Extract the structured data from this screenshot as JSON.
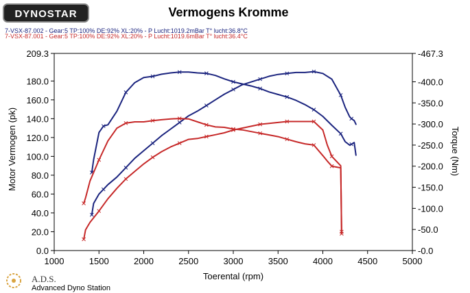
{
  "header": {
    "logo_text": "DYNOSTAR",
    "run_lines": [
      {
        "text": "7-VSX-87.002 - Gear:5 TP:100% DE:92% XL:20%   - P Lucht:1019.2mBar T° lucht:36.8°C",
        "color": "#1a237e"
      },
      {
        "text": "7-VSX-87.001 - Gear:5 TP:100% DE:92% XL:20%   - P Lucht:1019.6mBar T° lucht:36.4°C",
        "color": "#c62828"
      }
    ]
  },
  "footer": {
    "brand_title": "A.D.S.",
    "brand_subtitle": "Advanced Dyno Station"
  },
  "chart_data": {
    "type": "line",
    "title": "Vermogens Kromme",
    "xlabel": "Toerental (rpm)",
    "ylabel_left": "Motor Vermogen (pk)",
    "ylabel_right": "Torque (Nm)",
    "xlim": [
      1000,
      5000
    ],
    "ylim_left": [
      0,
      209.3
    ],
    "ylim_right": [
      0,
      467.3
    ],
    "x_ticks": [
      "1000",
      "1500",
      "2000",
      "2500",
      "3000",
      "3500",
      "4000",
      "4500",
      "5000"
    ],
    "y_left_ticks": [
      "0.0",
      "20.0",
      "40.0",
      "60.0",
      "80.0",
      "100.0",
      "120.0",
      "140.0",
      "160.0",
      "180.0",
      "209.3"
    ],
    "y_right_ticks": [
      "-0.0",
      "-50.0",
      "-100.0",
      "-150.0",
      "-200.0",
      "-250.0",
      "-300.0",
      "-350.0",
      "-400.0",
      "-467.3"
    ],
    "grid": false,
    "colors": {
      "run_002": "#1a237e",
      "run_001": "#c62828"
    },
    "series": [
      {
        "name": "7-VSX-87.002",
        "quantity": "power",
        "axis": "left",
        "x": [
          1420,
          1440,
          1500,
          1550,
          1600,
          1700,
          1800,
          1900,
          2000,
          2100,
          2200,
          2300,
          2400,
          2500,
          2600,
          2700,
          2800,
          2900,
          3000,
          3100,
          3200,
          3300,
          3400,
          3500,
          3600,
          3700,
          3800,
          3900,
          4000,
          4100,
          4200,
          4250,
          4300,
          4320,
          4350,
          4370
        ],
        "y": [
          38,
          50,
          60,
          65,
          70,
          78,
          88,
          98,
          106,
          114,
          122,
          129,
          136,
          143,
          148,
          154,
          160,
          166,
          171,
          176,
          179,
          182,
          185,
          187,
          188,
          189,
          189,
          190,
          188,
          182,
          165,
          152,
          142,
          140,
          138,
          134
        ]
      },
      {
        "name": "7-VSX-87.002",
        "quantity": "torque",
        "axis": "right",
        "x": [
          1420,
          1440,
          1500,
          1550,
          1600,
          1700,
          1800,
          1900,
          2000,
          2100,
          2200,
          2300,
          2400,
          2500,
          2600,
          2700,
          2800,
          2900,
          3000,
          3100,
          3200,
          3300,
          3400,
          3500,
          3600,
          3700,
          3800,
          3900,
          4000,
          4100,
          4200,
          4250,
          4300,
          4320,
          4350,
          4370
        ],
        "y": [
          185,
          215,
          280,
          295,
          298,
          330,
          375,
          398,
          410,
          413,
          418,
          421,
          423,
          423,
          421,
          420,
          415,
          407,
          400,
          395,
          390,
          384,
          376,
          370,
          364,
          356,
          346,
          334,
          318,
          297,
          277,
          258,
          250,
          252,
          256,
          226
        ]
      },
      {
        "name": "7-VSX-87.001",
        "quantity": "power",
        "axis": "left",
        "x": [
          1330,
          1350,
          1400,
          1500,
          1600,
          1700,
          1800,
          1900,
          2000,
          2100,
          2200,
          2300,
          2400,
          2500,
          2600,
          2700,
          2800,
          2900,
          3000,
          3100,
          3200,
          3300,
          3400,
          3500,
          3600,
          3700,
          3800,
          3900,
          4000,
          4050,
          4100,
          4150,
          4200,
          4210
        ],
        "y": [
          12,
          22,
          30,
          42,
          55,
          66,
          76,
          84,
          92,
          99,
          105,
          110,
          114,
          118,
          119,
          121,
          123,
          125,
          128,
          130,
          132,
          134,
          135,
          136,
          137,
          137,
          137,
          137,
          128,
          112,
          100,
          95,
          90,
          20
        ]
      },
      {
        "name": "7-VSX-87.001",
        "quantity": "torque",
        "axis": "right",
        "x": [
          1330,
          1350,
          1400,
          1500,
          1600,
          1700,
          1800,
          1900,
          2000,
          2100,
          2200,
          2300,
          2400,
          2500,
          2600,
          2700,
          2800,
          2900,
          3000,
          3100,
          3200,
          3300,
          3400,
          3500,
          3600,
          3700,
          3800,
          3900,
          4000,
          4050,
          4100,
          4150,
          4200,
          4210
        ],
        "y": [
          112,
          125,
          165,
          215,
          260,
          290,
          302,
          305,
          305,
          308,
          310,
          312,
          313,
          312,
          305,
          298,
          293,
          292,
          288,
          286,
          282,
          278,
          274,
          270,
          264,
          258,
          253,
          250,
          225,
          212,
          200,
          198,
          196,
          40
        ]
      }
    ]
  }
}
